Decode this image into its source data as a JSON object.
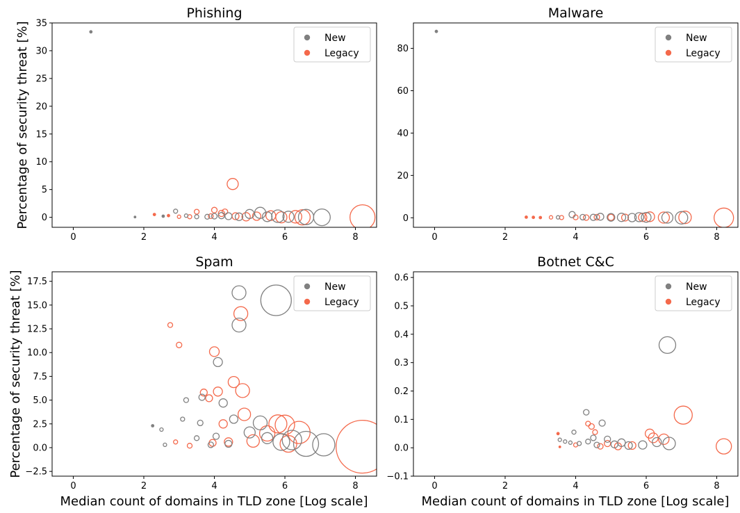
{
  "colors": {
    "new": "#808080",
    "legacy": "#f4694b"
  },
  "figure": {
    "ylabel": "Percentage of security threat [%]",
    "xlabel": "Median count of domains in TLD zone [Log scale]"
  },
  "legend": {
    "entries": [
      "New",
      "Legacy"
    ],
    "placement": "top-right"
  },
  "chart_data": [
    {
      "type": "scatter",
      "title": "Phishing",
      "xlim": [
        -0.6,
        8.6
      ],
      "ylim": [
        -1.8,
        35
      ],
      "xticks": [
        0,
        2,
        4,
        6,
        8
      ],
      "yticks": [
        0,
        5,
        10,
        15,
        20,
        25,
        30,
        35
      ],
      "tick_format": "int",
      "series": [
        {
          "name": "New",
          "points": [
            {
              "x": 0.5,
              "y": 33.4,
              "s": 2
            },
            {
              "x": 1.75,
              "y": 0.05,
              "s": 1.5
            },
            {
              "x": 2.55,
              "y": 0.2,
              "s": 2
            },
            {
              "x": 2.9,
              "y": 1.1,
              "s": 3
            },
            {
              "x": 3.2,
              "y": 0.3,
              "s": 2.5
            },
            {
              "x": 3.5,
              "y": 0.1,
              "s": 3
            },
            {
              "x": 3.8,
              "y": 0.1,
              "s": 3.5
            },
            {
              "x": 4.0,
              "y": 0.2,
              "s": 4
            },
            {
              "x": 4.2,
              "y": 0.3,
              "s": 4.5
            },
            {
              "x": 4.4,
              "y": 0.2,
              "s": 5
            },
            {
              "x": 4.7,
              "y": 0.1,
              "s": 5.5
            },
            {
              "x": 5.0,
              "y": 0.6,
              "s": 6.5
            },
            {
              "x": 5.3,
              "y": 0.8,
              "s": 8
            },
            {
              "x": 5.5,
              "y": 0.1,
              "s": 7
            },
            {
              "x": 5.8,
              "y": 0.2,
              "s": 9
            },
            {
              "x": 6.1,
              "y": 0.1,
              "s": 8
            },
            {
              "x": 6.6,
              "y": 0.05,
              "s": 11
            },
            {
              "x": 7.05,
              "y": 0.0,
              "s": 12
            }
          ]
        },
        {
          "name": "Legacy",
          "points": [
            {
              "x": 2.3,
              "y": 0.5,
              "s": 2
            },
            {
              "x": 2.7,
              "y": 0.3,
              "s": 2
            },
            {
              "x": 3.0,
              "y": 0.1,
              "s": 2.5
            },
            {
              "x": 3.3,
              "y": 0.1,
              "s": 3
            },
            {
              "x": 3.5,
              "y": 1.0,
              "s": 3.5
            },
            {
              "x": 3.9,
              "y": 0.2,
              "s": 3.5
            },
            {
              "x": 4.0,
              "y": 1.3,
              "s": 4
            },
            {
              "x": 4.2,
              "y": 0.7,
              "s": 4.5
            },
            {
              "x": 4.3,
              "y": 1.0,
              "s": 4
            },
            {
              "x": 4.52,
              "y": 6.0,
              "s": 8
            },
            {
              "x": 4.6,
              "y": 0.2,
              "s": 5
            },
            {
              "x": 4.9,
              "y": 0.1,
              "s": 6
            },
            {
              "x": 5.2,
              "y": 0.2,
              "s": 6
            },
            {
              "x": 5.6,
              "y": 0.3,
              "s": 7
            },
            {
              "x": 5.9,
              "y": 0.0,
              "s": 8
            },
            {
              "x": 6.3,
              "y": 0.1,
              "s": 9
            },
            {
              "x": 6.5,
              "y": 0.0,
              "s": 11
            },
            {
              "x": 8.2,
              "y": 0.0,
              "s": 18
            }
          ]
        }
      ]
    },
    {
      "type": "scatter",
      "title": "Malware",
      "xlim": [
        -0.6,
        8.6
      ],
      "ylim": [
        -4.5,
        92
      ],
      "xticks": [
        0,
        2,
        4,
        6,
        8
      ],
      "yticks": [
        0,
        20,
        40,
        60,
        80
      ],
      "tick_format": "int",
      "series": [
        {
          "name": "New",
          "points": [
            {
              "x": 0.05,
              "y": 88.0,
              "s": 2
            },
            {
              "x": 3.5,
              "y": 0.2,
              "s": 2.5
            },
            {
              "x": 3.9,
              "y": 1.5,
              "s": 4.5
            },
            {
              "x": 4.2,
              "y": 0.3,
              "s": 4
            },
            {
              "x": 4.5,
              "y": 0.2,
              "s": 4.5
            },
            {
              "x": 4.7,
              "y": 0.5,
              "s": 5
            },
            {
              "x": 5.0,
              "y": 0.2,
              "s": 5.5
            },
            {
              "x": 5.3,
              "y": 0.2,
              "s": 6
            },
            {
              "x": 5.6,
              "y": 0.1,
              "s": 6
            },
            {
              "x": 5.8,
              "y": 0.3,
              "s": 6.5
            },
            {
              "x": 6.0,
              "y": 0.2,
              "s": 7
            },
            {
              "x": 6.6,
              "y": 0.1,
              "s": 8
            },
            {
              "x": 7.0,
              "y": 0.0,
              "s": 9
            }
          ]
        },
        {
          "name": "Legacy",
          "points": [
            {
              "x": 2.6,
              "y": 0.3,
              "s": 2
            },
            {
              "x": 2.8,
              "y": 0.2,
              "s": 2
            },
            {
              "x": 3.0,
              "y": 0.1,
              "s": 2
            },
            {
              "x": 3.3,
              "y": 0.2,
              "s": 2.5
            },
            {
              "x": 3.6,
              "y": 0.1,
              "s": 3
            },
            {
              "x": 4.0,
              "y": 0.2,
              "s": 3.5
            },
            {
              "x": 4.3,
              "y": 0.1,
              "s": 4
            },
            {
              "x": 4.6,
              "y": 0.3,
              "s": 4
            },
            {
              "x": 5.0,
              "y": 0.2,
              "s": 4.5
            },
            {
              "x": 5.4,
              "y": 0.1,
              "s": 5
            },
            {
              "x": 5.9,
              "y": 0.2,
              "s": 6
            },
            {
              "x": 6.1,
              "y": 0.5,
              "s": 7
            },
            {
              "x": 6.5,
              "y": 0.1,
              "s": 8
            },
            {
              "x": 7.1,
              "y": 0.2,
              "s": 9
            },
            {
              "x": 8.2,
              "y": 0.0,
              "s": 14
            }
          ]
        }
      ]
    },
    {
      "type": "scatter",
      "title": "Spam",
      "xlim": [
        -0.6,
        8.6
      ],
      "ylim": [
        -3.0,
        18.5
      ],
      "xticks": [
        0,
        2,
        4,
        6,
        8
      ],
      "yticks": [
        -2.5,
        0,
        2.5,
        5,
        7.5,
        10,
        12.5,
        15,
        17.5
      ],
      "tick_format": "one_decimal",
      "series": [
        {
          "name": "New",
          "points": [
            {
              "x": 2.25,
              "y": 2.3,
              "s": 2
            },
            {
              "x": 2.5,
              "y": 1.9,
              "s": 2.5
            },
            {
              "x": 2.6,
              "y": 0.3,
              "s": 2.5
            },
            {
              "x": 3.1,
              "y": 3.0,
              "s": 3
            },
            {
              "x": 3.2,
              "y": 5.0,
              "s": 3.5
            },
            {
              "x": 3.5,
              "y": 1.0,
              "s": 3.5
            },
            {
              "x": 3.6,
              "y": 2.6,
              "s": 4
            },
            {
              "x": 3.65,
              "y": 5.3,
              "s": 4.5
            },
            {
              "x": 3.9,
              "y": 0.3,
              "s": 4
            },
            {
              "x": 4.05,
              "y": 1.2,
              "s": 4.5
            },
            {
              "x": 4.1,
              "y": 9.0,
              "s": 6.5
            },
            {
              "x": 4.25,
              "y": 4.7,
              "s": 6
            },
            {
              "x": 4.4,
              "y": 0.4,
              "s": 5
            },
            {
              "x": 4.55,
              "y": 3.0,
              "s": 6
            },
            {
              "x": 4.7,
              "y": 16.3,
              "s": 10
            },
            {
              "x": 4.7,
              "y": 12.9,
              "s": 10
            },
            {
              "x": 5.0,
              "y": 1.6,
              "s": 8
            },
            {
              "x": 5.3,
              "y": 2.6,
              "s": 10
            },
            {
              "x": 5.5,
              "y": 1.0,
              "s": 8
            },
            {
              "x": 5.75,
              "y": 15.5,
              "s": 22
            },
            {
              "x": 5.9,
              "y": 0.6,
              "s": 12
            },
            {
              "x": 6.2,
              "y": 0.8,
              "s": 14
            },
            {
              "x": 6.6,
              "y": 0.4,
              "s": 18
            },
            {
              "x": 7.1,
              "y": 0.3,
              "s": 16
            }
          ]
        },
        {
          "name": "Legacy",
          "points": [
            {
              "x": 2.75,
              "y": 12.9,
              "s": 3.5
            },
            {
              "x": 3.0,
              "y": 10.8,
              "s": 4
            },
            {
              "x": 2.9,
              "y": 0.6,
              "s": 3
            },
            {
              "x": 3.3,
              "y": 0.2,
              "s": 3.5
            },
            {
              "x": 3.7,
              "y": 5.8,
              "s": 5
            },
            {
              "x": 3.85,
              "y": 5.2,
              "s": 5
            },
            {
              "x": 3.95,
              "y": 0.5,
              "s": 5
            },
            {
              "x": 4.0,
              "y": 10.1,
              "s": 7
            },
            {
              "x": 4.1,
              "y": 5.9,
              "s": 6.5
            },
            {
              "x": 4.25,
              "y": 2.5,
              "s": 6
            },
            {
              "x": 4.4,
              "y": 0.6,
              "s": 6
            },
            {
              "x": 4.55,
              "y": 6.9,
              "s": 8
            },
            {
              "x": 4.75,
              "y": 14.1,
              "s": 10
            },
            {
              "x": 4.8,
              "y": 6.0,
              "s": 10
            },
            {
              "x": 4.85,
              "y": 3.5,
              "s": 9
            },
            {
              "x": 5.1,
              "y": 0.7,
              "s": 9
            },
            {
              "x": 5.5,
              "y": 1.5,
              "s": 11
            },
            {
              "x": 5.8,
              "y": 2.5,
              "s": 13
            },
            {
              "x": 6.0,
              "y": 2.4,
              "s": 14
            },
            {
              "x": 6.4,
              "y": 1.6,
              "s": 16
            },
            {
              "x": 6.1,
              "y": 0.4,
              "s": 12
            },
            {
              "x": 8.2,
              "y": 0.1,
              "s": 38
            }
          ]
        }
      ]
    },
    {
      "type": "scatter",
      "title": "Botnet C&C",
      "xlim": [
        -0.6,
        8.6
      ],
      "ylim": [
        -0.1,
        0.62
      ],
      "xticks": [
        0,
        2,
        4,
        6,
        8
      ],
      "yticks": [
        -0.1,
        0,
        0.1,
        0.2,
        0.3,
        0.4,
        0.5,
        0.6
      ],
      "tick_format": "one_decimal",
      "series": [
        {
          "name": "New",
          "points": [
            {
              "x": 3.55,
              "y": 0.028,
              "s": 2.5
            },
            {
              "x": 3.7,
              "y": 0.022,
              "s": 2.5
            },
            {
              "x": 3.85,
              "y": 0.018,
              "s": 2.5
            },
            {
              "x": 3.95,
              "y": 0.055,
              "s": 3
            },
            {
              "x": 4.1,
              "y": 0.015,
              "s": 3
            },
            {
              "x": 4.3,
              "y": 0.125,
              "s": 4
            },
            {
              "x": 4.35,
              "y": 0.022,
              "s": 3.5
            },
            {
              "x": 4.5,
              "y": 0.035,
              "s": 4
            },
            {
              "x": 4.6,
              "y": 0.01,
              "s": 4
            },
            {
              "x": 4.75,
              "y": 0.087,
              "s": 4.5
            },
            {
              "x": 4.9,
              "y": 0.03,
              "s": 4.5
            },
            {
              "x": 5.1,
              "y": 0.012,
              "s": 5
            },
            {
              "x": 5.3,
              "y": 0.018,
              "s": 5.5
            },
            {
              "x": 5.5,
              "y": 0.008,
              "s": 5.5
            },
            {
              "x": 5.9,
              "y": 0.01,
              "s": 6
            },
            {
              "x": 6.3,
              "y": 0.02,
              "s": 6.5
            },
            {
              "x": 6.6,
              "y": 0.362,
              "s": 12
            },
            {
              "x": 6.65,
              "y": 0.015,
              "s": 9
            }
          ]
        },
        {
          "name": "Legacy",
          "points": [
            {
              "x": 3.5,
              "y": 0.05,
              "s": 2
            },
            {
              "x": 3.55,
              "y": 0.003,
              "s": 1.5
            },
            {
              "x": 4.0,
              "y": 0.01,
              "s": 3
            },
            {
              "x": 4.35,
              "y": 0.085,
              "s": 3.5
            },
            {
              "x": 4.45,
              "y": 0.075,
              "s": 4
            },
            {
              "x": 4.55,
              "y": 0.055,
              "s": 3.5
            },
            {
              "x": 4.7,
              "y": 0.005,
              "s": 4
            },
            {
              "x": 4.9,
              "y": 0.015,
              "s": 4.5
            },
            {
              "x": 5.2,
              "y": 0.005,
              "s": 5
            },
            {
              "x": 5.6,
              "y": 0.008,
              "s": 5.5
            },
            {
              "x": 6.1,
              "y": 0.05,
              "s": 6.5
            },
            {
              "x": 6.2,
              "y": 0.035,
              "s": 7
            },
            {
              "x": 6.5,
              "y": 0.03,
              "s": 7.5
            },
            {
              "x": 7.05,
              "y": 0.115,
              "s": 13
            },
            {
              "x": 8.2,
              "y": 0.005,
              "s": 11
            }
          ]
        }
      ]
    }
  ]
}
